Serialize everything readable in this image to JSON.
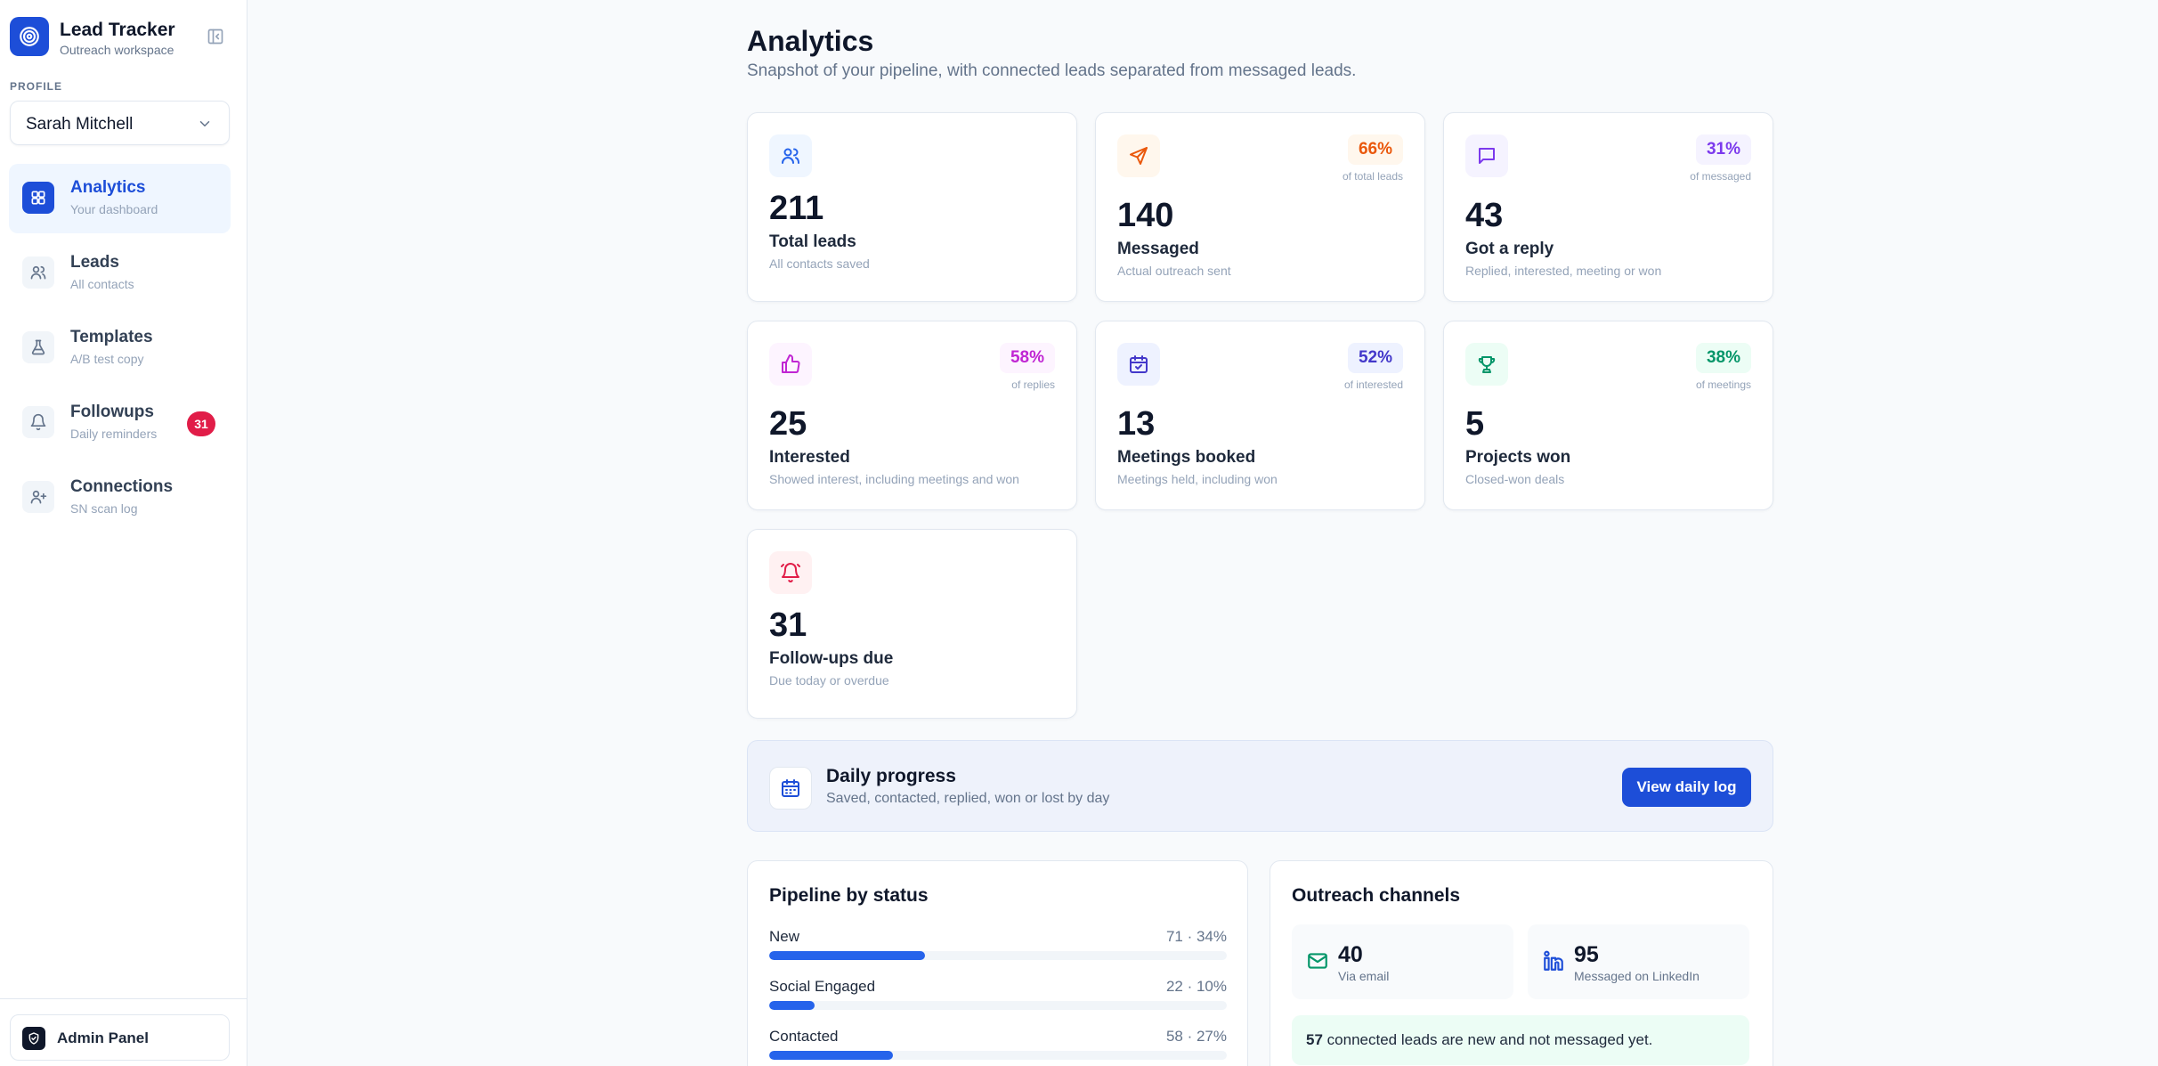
{
  "app": {
    "title": "Lead Tracker",
    "subtitle": "Outreach workspace"
  },
  "profile": {
    "label": "PROFILE",
    "selected": "Sarah Mitchell"
  },
  "nav": [
    {
      "label": "Analytics",
      "sub": "Your dashboard",
      "icon": "grid-icon",
      "active": true
    },
    {
      "label": "Leads",
      "sub": "All contacts",
      "icon": "users-icon"
    },
    {
      "label": "Templates",
      "sub": "A/B test copy",
      "icon": "flask-icon"
    },
    {
      "label": "Followups",
      "sub": "Daily reminders",
      "icon": "bell-icon",
      "badge": "31"
    },
    {
      "label": "Connections",
      "sub": "SN scan log",
      "icon": "user-plus-icon"
    }
  ],
  "footer": {
    "admin_label": "Admin Panel"
  },
  "page": {
    "title": "Analytics",
    "subtitle": "Snapshot of your pipeline, with connected leads separated from messaged leads."
  },
  "cards": [
    {
      "value": "211",
      "label": "Total leads",
      "desc": "All contacts saved",
      "icon": "users-icon",
      "color": "#2563eb",
      "bg": "#eff6ff"
    },
    {
      "value": "140",
      "label": "Messaged",
      "desc": "Actual outreach sent",
      "pct": "66%",
      "pct_sub": "of total leads",
      "icon": "send-icon",
      "color": "#ea580c",
      "bg": "#fff7ed"
    },
    {
      "value": "43",
      "label": "Got a reply",
      "desc": "Replied, interested, meeting or won",
      "pct": "31%",
      "pct_sub": "of messaged",
      "icon": "message-icon",
      "color": "#7c3aed",
      "bg": "#f5f3ff"
    },
    {
      "value": "25",
      "label": "Interested",
      "desc": "Showed interest, including meetings and won",
      "pct": "58%",
      "pct_sub": "of replies",
      "icon": "thumbs-up-icon",
      "color": "#c026d3",
      "bg": "#fdf4ff"
    },
    {
      "value": "13",
      "label": "Meetings booked",
      "desc": "Meetings held, including won",
      "pct": "52%",
      "pct_sub": "of interested",
      "icon": "calendar-check-icon",
      "color": "#4338ca",
      "bg": "#eef2ff"
    },
    {
      "value": "5",
      "label": "Projects won",
      "desc": "Closed-won deals",
      "pct": "38%",
      "pct_sub": "of meetings",
      "icon": "trophy-icon",
      "color": "#059669",
      "bg": "#ecfdf5"
    },
    {
      "value": "31",
      "label": "Follow-ups due",
      "desc": "Due today or overdue",
      "icon": "bell-icon",
      "color": "#e11d48",
      "bg": "#fff1f2"
    }
  ],
  "daily": {
    "title": "Daily progress",
    "subtitle": "Saved, contacted, replied, won or lost by day",
    "button": "View daily log"
  },
  "pipeline": {
    "title": "Pipeline by status",
    "rows": [
      {
        "name": "New",
        "meta": "71 · 34%",
        "pct": 34
      },
      {
        "name": "Social Engaged",
        "meta": "22 · 10%",
        "pct": 10
      },
      {
        "name": "Contacted",
        "meta": "58 · 27%",
        "pct": 27
      }
    ]
  },
  "channels": {
    "title": "Outreach channels",
    "email": {
      "value": "40",
      "label": "Via email"
    },
    "linkedin": {
      "value": "95",
      "label": "Messaged on LinkedIn"
    },
    "note_count": "57",
    "note_text": "connected leads are new and not messaged yet."
  }
}
